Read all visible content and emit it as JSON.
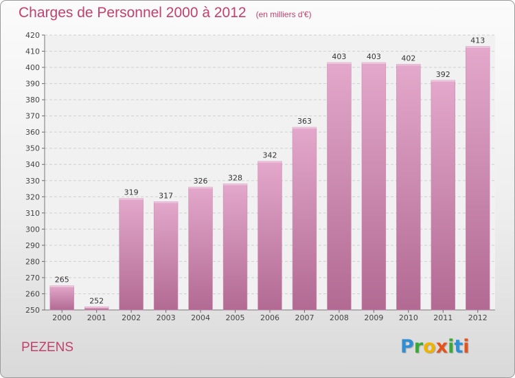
{
  "header": {
    "title": "Charges de Personnel 2000 à 2012",
    "subtitle": "(en milliers d'€)"
  },
  "footer": {
    "commune": "PEZENS",
    "logo_letters": [
      {
        "char": "P",
        "color": "#2f8fd4"
      },
      {
        "char": "r",
        "color": "#3aaa35"
      },
      {
        "char": "o",
        "color": "#f0b400"
      },
      {
        "char": "x",
        "color": "#e5531b"
      },
      {
        "char": "i",
        "color": "#3aaa35"
      },
      {
        "char": "t",
        "color": "#2f8fd4"
      },
      {
        "char": "i",
        "color": "#e5531b"
      }
    ]
  },
  "colors": {
    "bar_top": "#e3a8cb",
    "bar_bottom": "#b26a93",
    "accent": "#c2406d"
  },
  "chart_data": {
    "type": "bar",
    "categories": [
      "2000",
      "2001",
      "2002",
      "2003",
      "2004",
      "2005",
      "2006",
      "2007",
      "2008",
      "2009",
      "2010",
      "2011",
      "2012"
    ],
    "values": [
      265,
      252,
      319,
      317,
      326,
      328,
      342,
      363,
      403,
      403,
      402,
      392,
      413
    ],
    "ylim": [
      250,
      420
    ],
    "yticks": [
      250,
      260,
      270,
      280,
      290,
      300,
      310,
      320,
      330,
      340,
      350,
      360,
      370,
      380,
      390,
      400,
      410,
      420
    ],
    "grid": true
  }
}
